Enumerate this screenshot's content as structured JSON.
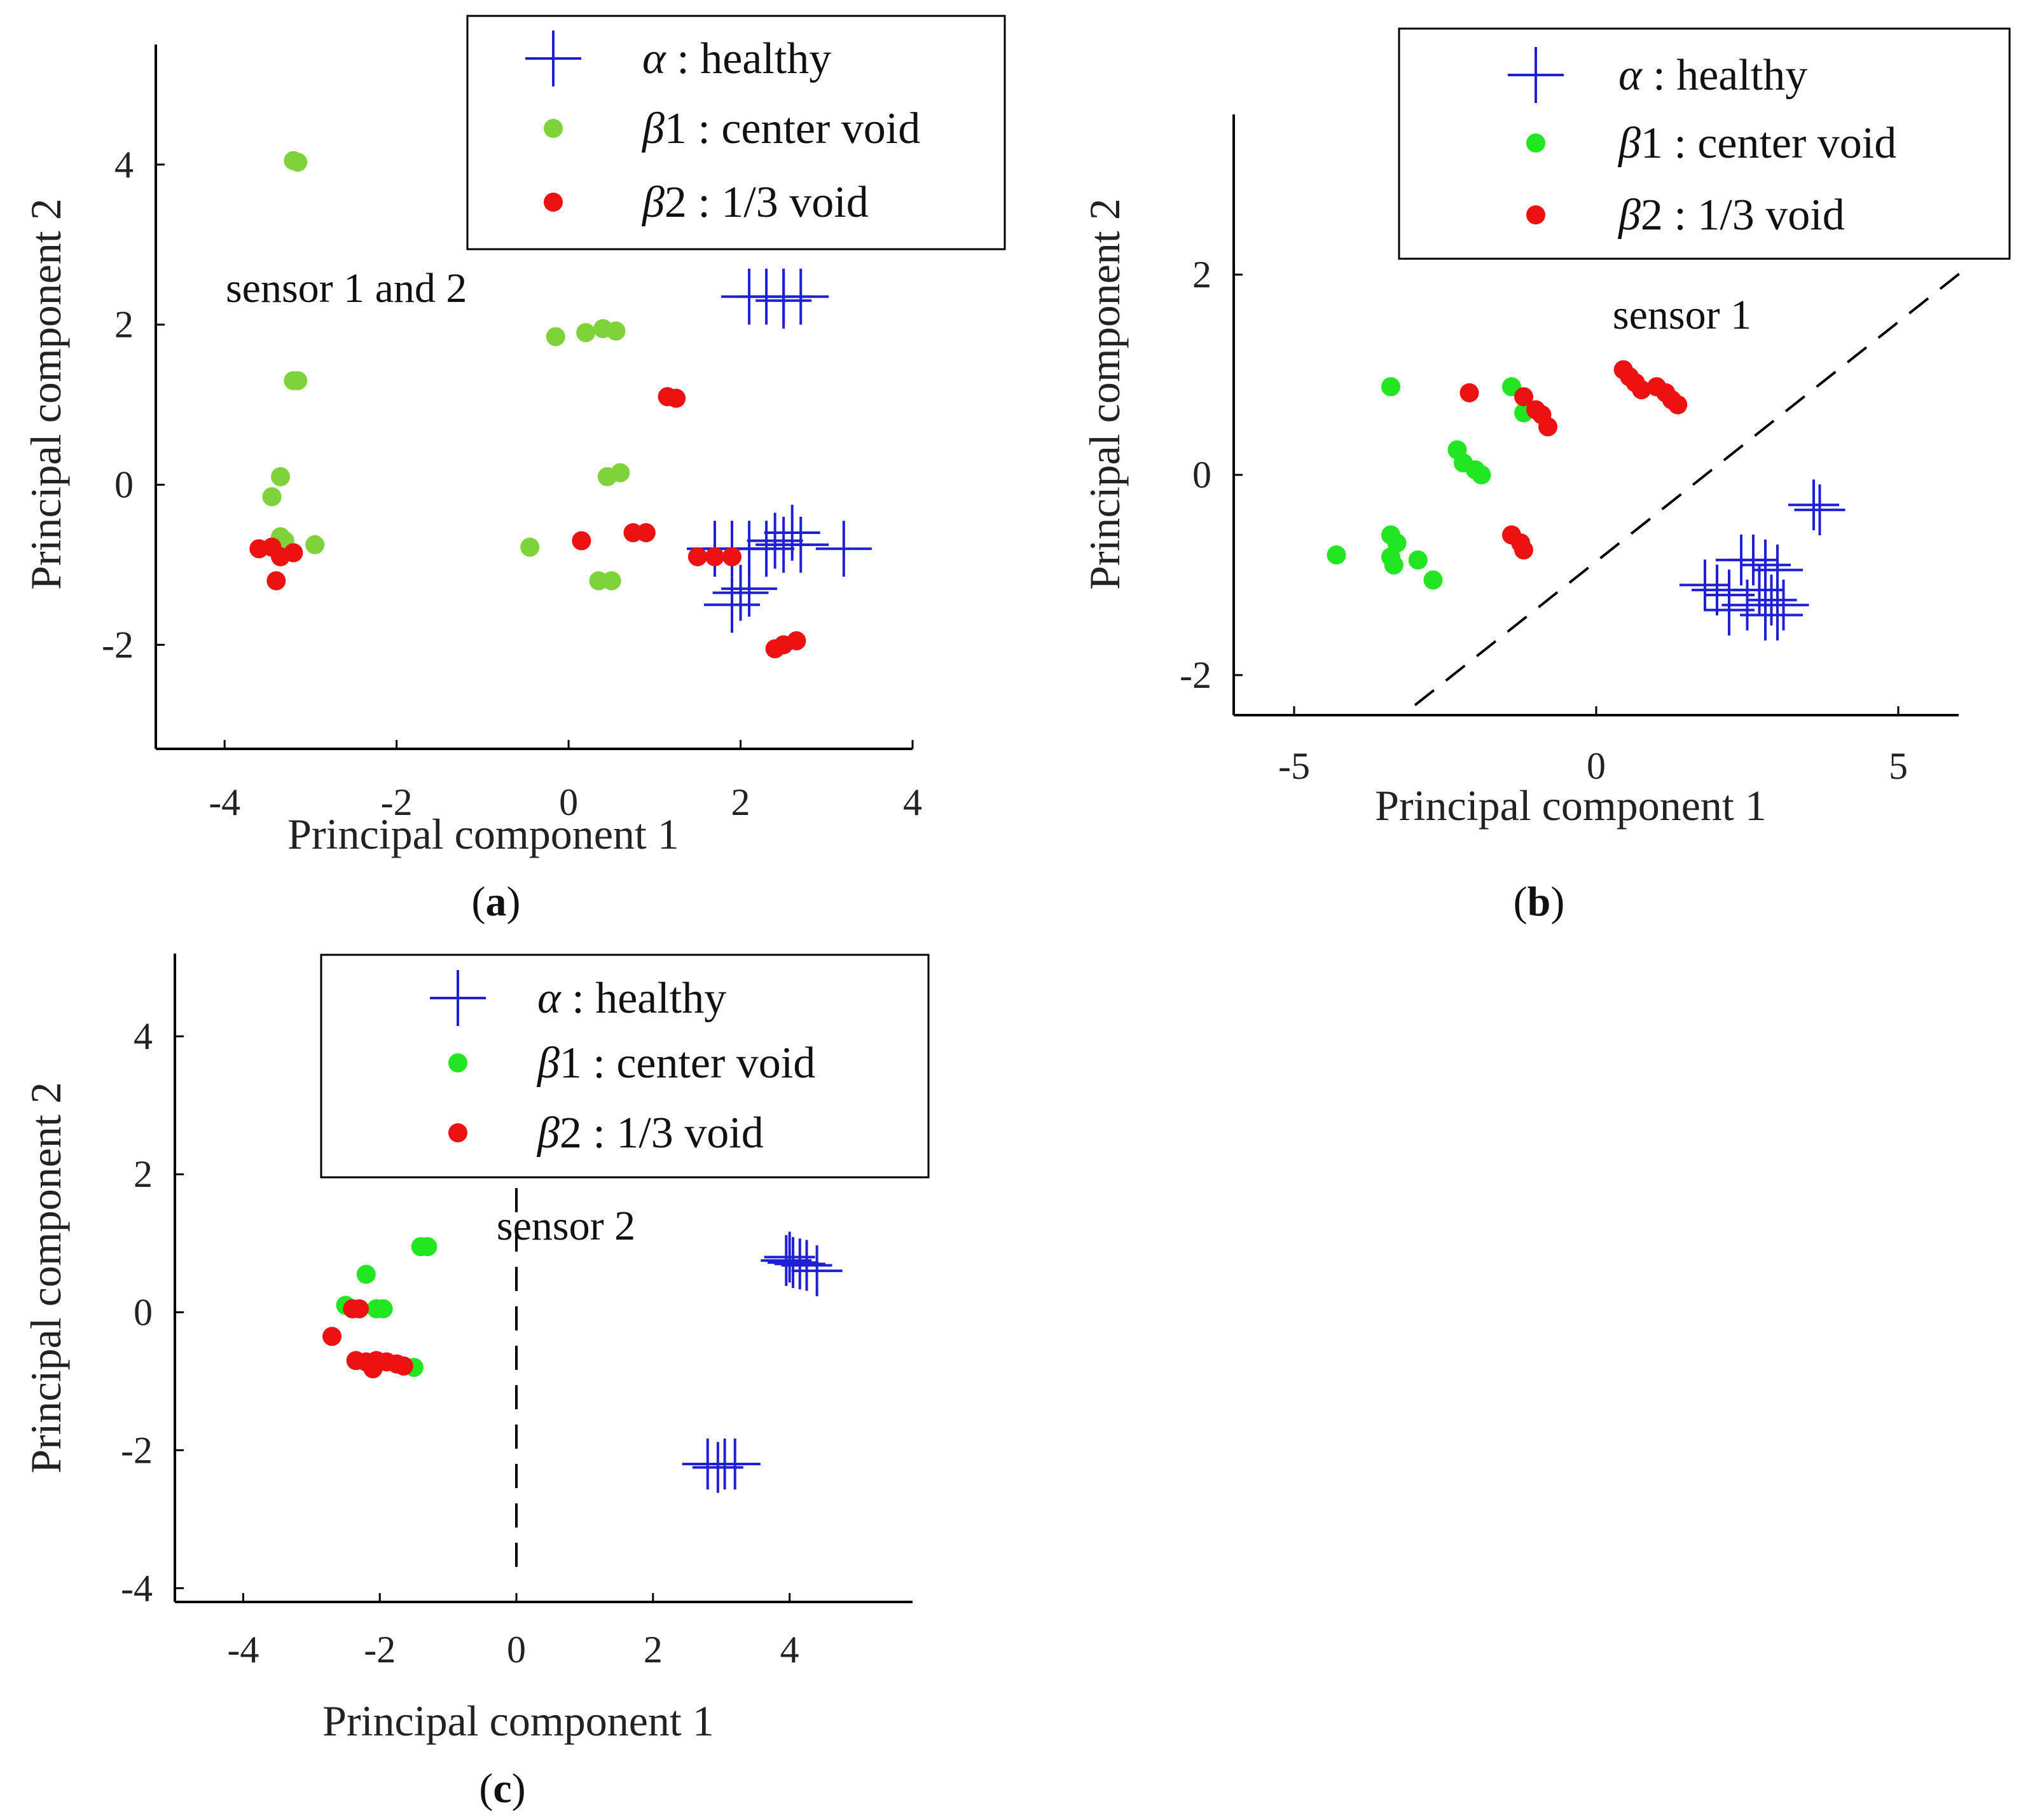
{
  "colors": {
    "healthy": "#1f1fd6",
    "center_void_a": "#7fd33a",
    "center_void": "#22e622",
    "third_void": "#ee1111",
    "axis": "#000000"
  },
  "chart_data": [
    {
      "id": "a",
      "type": "scatter",
      "caption_letter": "a",
      "xlabel": "Principal component 1",
      "ylabel": "Principal component 2",
      "xlim": [
        -4.8,
        4.0
      ],
      "ylim": [
        -3.3,
        5.5
      ],
      "xticks": [
        -4,
        -2,
        0,
        2,
        4
      ],
      "yticks": [
        -2,
        0,
        2,
        4
      ],
      "annotation": "sensor 1 and 2",
      "legend_placement": "top-right",
      "series": [
        {
          "key": "healthy",
          "name": "α : healthy",
          "greek": "α",
          "label": " : healthy",
          "marker": "plus",
          "color_key": "healthy",
          "points": [
            [
              2.1,
              2.35
            ],
            [
              2.3,
              2.35
            ],
            [
              2.5,
              2.35
            ],
            [
              2.7,
              2.35
            ],
            [
              2.5,
              2.3
            ],
            [
              1.7,
              -0.8
            ],
            [
              1.9,
              -0.8
            ],
            [
              2.1,
              -0.8
            ],
            [
              2.3,
              -0.8
            ],
            [
              2.5,
              -0.75
            ],
            [
              2.7,
              -0.75
            ],
            [
              2.4,
              -0.7
            ],
            [
              2.6,
              -0.6
            ],
            [
              3.2,
              -0.8
            ],
            [
              1.9,
              -1.5
            ],
            [
              2.1,
              -1.3
            ],
            [
              2.0,
              -1.35
            ]
          ]
        },
        {
          "key": "center_void",
          "name": "β1 : center void",
          "greek": "β",
          "label": "1 : center void",
          "marker": "dot",
          "color_key": "center_void_a",
          "points": [
            [
              -3.2,
              4.05
            ],
            [
              -3.15,
              4.03
            ],
            [
              -3.2,
              1.3
            ],
            [
              -3.15,
              1.3
            ],
            [
              -3.35,
              0.1
            ],
            [
              -3.45,
              -0.15
            ],
            [
              -3.35,
              -0.65
            ],
            [
              -3.3,
              -0.7
            ],
            [
              -2.95,
              -0.75
            ],
            [
              -0.15,
              1.85
            ],
            [
              0.2,
              1.9
            ],
            [
              0.4,
              1.95
            ],
            [
              0.55,
              1.92
            ],
            [
              0.45,
              0.1
            ],
            [
              0.6,
              0.15
            ],
            [
              0.35,
              -1.2
            ],
            [
              0.5,
              -1.2
            ],
            [
              -0.45,
              -0.78
            ]
          ]
        },
        {
          "key": "third_void",
          "name": "β2 : 1/3 void",
          "greek": "β",
          "label": "2 : 1/3 void",
          "marker": "dot",
          "color_key": "third_void",
          "points": [
            [
              -3.6,
              -0.8
            ],
            [
              -3.45,
              -0.78
            ],
            [
              -3.35,
              -0.9
            ],
            [
              -3.2,
              -0.85
            ],
            [
              -3.4,
              -1.2
            ],
            [
              0.15,
              -0.7
            ],
            [
              0.75,
              -0.6
            ],
            [
              0.9,
              -0.6
            ],
            [
              1.15,
              1.1
            ],
            [
              1.25,
              1.08
            ],
            [
              1.5,
              -0.9
            ],
            [
              1.7,
              -0.9
            ],
            [
              1.9,
              -0.9
            ],
            [
              2.4,
              -2.05
            ],
            [
              2.5,
              -2.0
            ],
            [
              2.65,
              -1.95
            ]
          ]
        }
      ]
    },
    {
      "id": "b",
      "type": "scatter",
      "caption_letter": "b",
      "xlabel": "Principal component 1",
      "ylabel": "Principal component 2",
      "xlim": [
        -6.0,
        6.0
      ],
      "ylim": [
        -2.4,
        3.6
      ],
      "xticks": [
        -5,
        0,
        5
      ],
      "yticks": [
        -2,
        0,
        2
      ],
      "annotation": "sensor 1",
      "legend_placement": "top-right",
      "decision_line": [
        [
          -3.0,
          -2.3
        ],
        [
          6.2,
          2.1
        ]
      ],
      "series": [
        {
          "key": "healthy",
          "name": "α : healthy",
          "greek": "α",
          "label": " : healthy",
          "marker": "plus",
          "color_key": "healthy",
          "points": [
            [
              3.6,
              -0.3
            ],
            [
              3.7,
              -0.35
            ],
            [
              1.8,
              -1.1
            ],
            [
              2.0,
              -1.15
            ],
            [
              2.2,
              -1.2
            ],
            [
              2.4,
              -0.85
            ],
            [
              2.6,
              -0.85
            ],
            [
              2.8,
              -0.9
            ],
            [
              3.0,
              -0.95
            ],
            [
              2.7,
              -1.15
            ],
            [
              2.9,
              -1.25
            ],
            [
              3.1,
              -1.3
            ],
            [
              2.5,
              -1.3
            ],
            [
              2.8,
              -1.4
            ],
            [
              3.0,
              -1.4
            ],
            [
              2.2,
              -1.35
            ]
          ]
        },
        {
          "key": "center_void",
          "name": "β1 : center void",
          "greek": "β",
          "label": "1 : center void",
          "marker": "dot",
          "color_key": "center_void",
          "points": [
            [
              -3.4,
              0.88
            ],
            [
              -1.4,
              0.88
            ],
            [
              -1.2,
              0.62
            ],
            [
              -2.3,
              0.25
            ],
            [
              -2.2,
              0.12
            ],
            [
              -2.0,
              0.05
            ],
            [
              -1.9,
              0.0
            ],
            [
              -4.3,
              -0.8
            ],
            [
              -3.4,
              -0.6
            ],
            [
              -3.3,
              -0.68
            ],
            [
              -3.4,
              -0.82
            ],
            [
              -3.35,
              -0.9
            ],
            [
              -2.95,
              -0.85
            ],
            [
              -2.7,
              -1.05
            ]
          ]
        },
        {
          "key": "third_void",
          "name": "β2 : 1/3 void",
          "greek": "β",
          "label": "2 : 1/3 void",
          "marker": "dot",
          "color_key": "third_void",
          "points": [
            [
              -2.1,
              0.82
            ],
            [
              -1.2,
              0.78
            ],
            [
              -1.0,
              0.65
            ],
            [
              -0.9,
              0.6
            ],
            [
              -0.8,
              0.48
            ],
            [
              0.45,
              1.05
            ],
            [
              0.55,
              0.98
            ],
            [
              0.65,
              0.92
            ],
            [
              0.75,
              0.85
            ],
            [
              1.0,
              0.88
            ],
            [
              1.15,
              0.82
            ],
            [
              1.25,
              0.75
            ],
            [
              1.35,
              0.7
            ],
            [
              -1.4,
              -0.6
            ],
            [
              -1.25,
              -0.68
            ],
            [
              -1.2,
              -0.75
            ]
          ]
        }
      ]
    },
    {
      "id": "c",
      "type": "scatter",
      "caption_letter": "c",
      "xlabel": "Principal component 1",
      "ylabel": "Principal component 2",
      "xlim": [
        -5.0,
        5.8
      ],
      "ylim": [
        -4.2,
        5.2
      ],
      "xticks": [
        -4,
        -2,
        0,
        2,
        4
      ],
      "yticks": [
        -4,
        -2,
        0,
        2,
        4
      ],
      "annotation": "sensor 2",
      "legend_placement": "top",
      "decision_line": [
        [
          0.0,
          1.8
        ],
        [
          0.0,
          -3.8
        ]
      ],
      "series": [
        {
          "key": "healthy",
          "name": "α : healthy",
          "greek": "α",
          "label": " : healthy",
          "marker": "plus",
          "color_key": "healthy",
          "points": [
            [
              3.95,
              0.75
            ],
            [
              4.05,
              0.72
            ],
            [
              4.15,
              0.7
            ],
            [
              4.25,
              0.68
            ],
            [
              4.4,
              0.6
            ],
            [
              4.0,
              0.8
            ],
            [
              2.8,
              -2.2
            ],
            [
              2.95,
              -2.25
            ],
            [
              3.05,
              -2.2
            ],
            [
              3.2,
              -2.2
            ]
          ]
        },
        {
          "key": "center_void",
          "name": "β1 : center void",
          "greek": "β",
          "label": "1 : center void",
          "marker": "dot",
          "color_key": "center_void",
          "points": [
            [
              -2.2,
              0.55
            ],
            [
              -2.5,
              0.1
            ],
            [
              -2.05,
              0.05
            ],
            [
              -1.95,
              0.05
            ],
            [
              -1.4,
              0.95
            ],
            [
              -1.3,
              0.95
            ],
            [
              -1.5,
              -0.8
            ]
          ]
        },
        {
          "key": "third_void",
          "name": "β2 : 1/3 void",
          "greek": "β",
          "label": "2 : 1/3 void",
          "marker": "dot",
          "color_key": "third_void",
          "points": [
            [
              -2.7,
              -0.35
            ],
            [
              -2.4,
              0.05
            ],
            [
              -2.3,
              0.05
            ],
            [
              -2.35,
              -0.7
            ],
            [
              -2.2,
              -0.72
            ],
            [
              -2.05,
              -0.7
            ],
            [
              -1.9,
              -0.72
            ],
            [
              -1.75,
              -0.75
            ],
            [
              -1.65,
              -0.78
            ],
            [
              -2.1,
              -0.82
            ]
          ]
        }
      ]
    }
  ]
}
